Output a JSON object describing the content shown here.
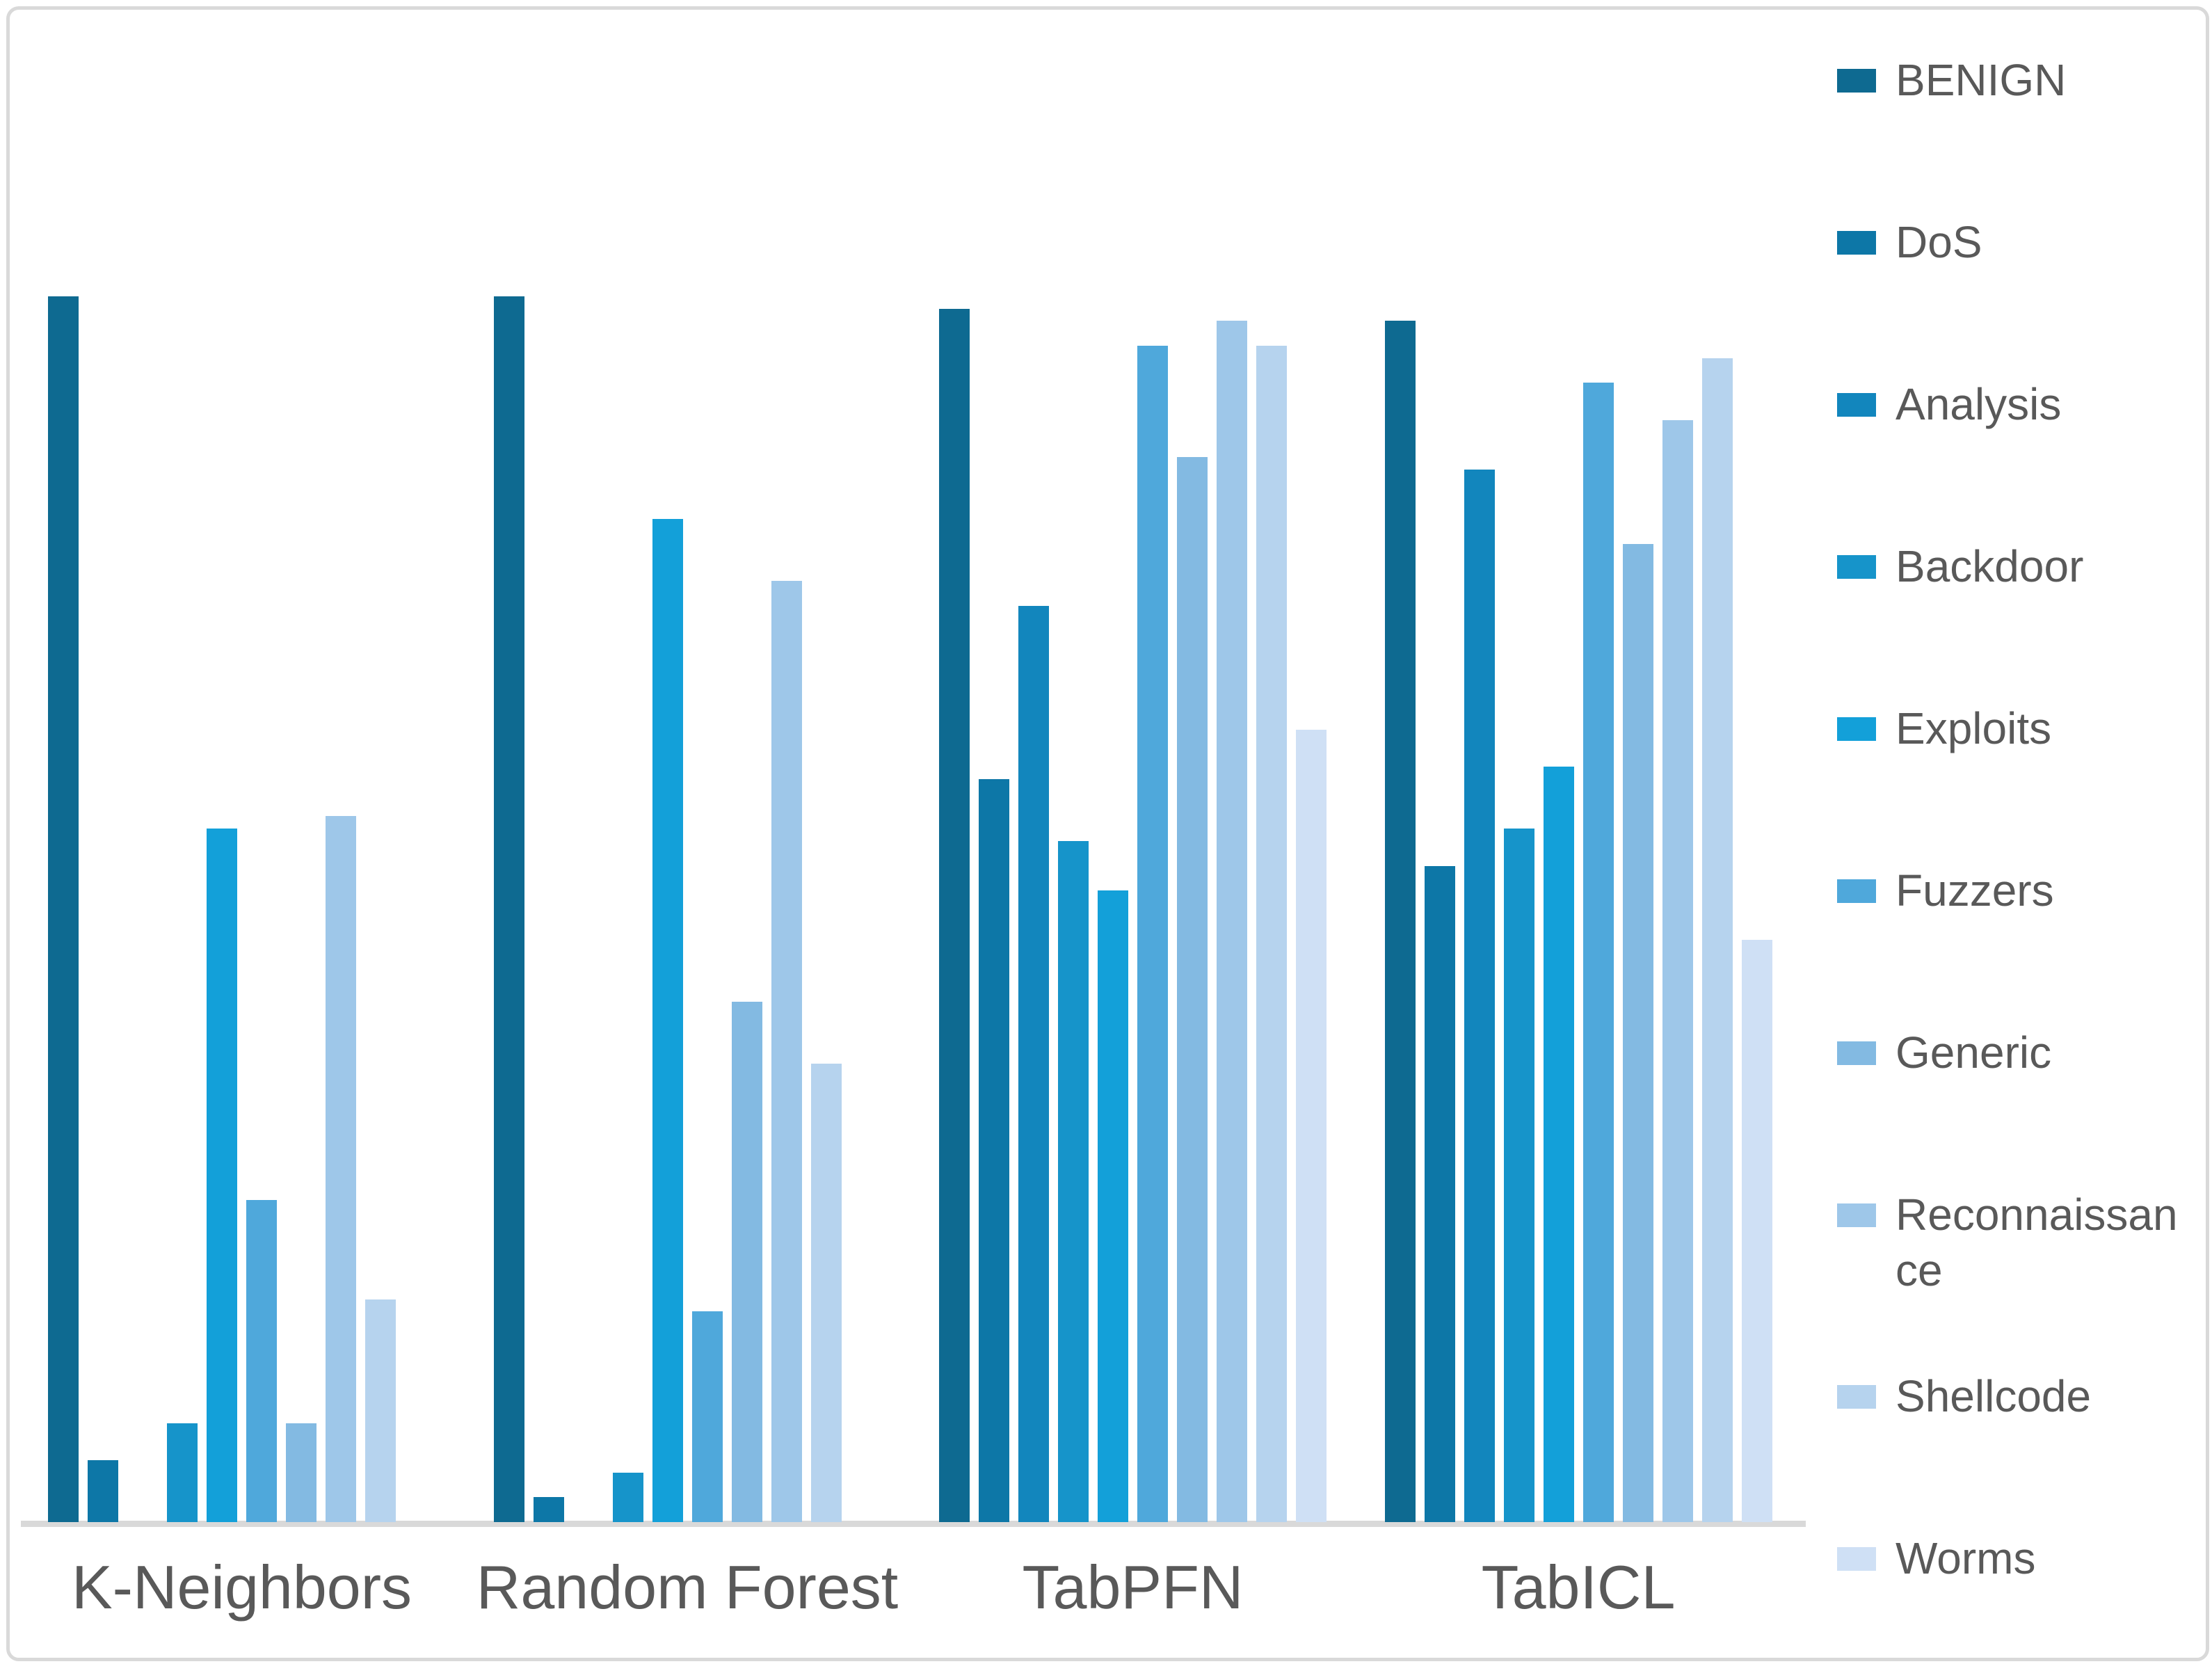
{
  "chart_data": {
    "type": "bar",
    "title": "",
    "xlabel": "",
    "ylabel": "",
    "categories": [
      "K-Neighbors",
      "Random Forest",
      "TabPFN",
      "TabICL"
    ],
    "series": [
      {
        "name": "BENIGN",
        "color": "#0e6a91",
        "values": [
          0.99,
          0.99,
          0.98,
          0.97
        ]
      },
      {
        "name": "DoS",
        "color": "#0d77a7",
        "values": [
          0.05,
          0.02,
          0.6,
          0.53
        ]
      },
      {
        "name": "Analysis",
        "color": "#1286bd",
        "values": [
          0.0,
          0.0,
          0.74,
          0.85
        ]
      },
      {
        "name": "Backdoor",
        "color": "#1694ca",
        "values": [
          0.08,
          0.04,
          0.55,
          0.56
        ]
      },
      {
        "name": "Exploits",
        "color": "#13a0d9",
        "values": [
          0.56,
          0.81,
          0.51,
          0.61
        ]
      },
      {
        "name": "Fuzzers",
        "color": "#4fa8db",
        "values": [
          0.26,
          0.17,
          0.95,
          0.92
        ]
      },
      {
        "name": "Generic",
        "color": "#83bae2",
        "values": [
          0.08,
          0.42,
          0.86,
          0.79
        ]
      },
      {
        "name": "Reconnaissance",
        "color": "#9ec7e9",
        "values": [
          0.57,
          0.76,
          0.97,
          0.89
        ]
      },
      {
        "name": "Shellcode",
        "color": "#b6d3ee",
        "values": [
          0.18,
          0.37,
          0.95,
          0.94
        ]
      },
      {
        "name": "Worms",
        "color": "#cfe0f5",
        "values": [
          0.0,
          0.0,
          0.64,
          0.47
        ]
      }
    ],
    "legend_position": "right",
    "legend_labels": [
      "BENIGN",
      "DoS",
      "Analysis",
      "Backdoor",
      "Exploits",
      "Fuzzers",
      "Generic",
      "Reconnaissan\nce",
      "Shellcode",
      "Worms"
    ],
    "ylim": [
      0,
      1.21
    ],
    "grid": false,
    "y_axis_visible": false,
    "x_axis_line_visible": true
  },
  "colors": {
    "background": "#ffffff",
    "frame_border": "#d9d9d9",
    "axis_line": "#d9d9d9",
    "label_text": "#595959"
  }
}
